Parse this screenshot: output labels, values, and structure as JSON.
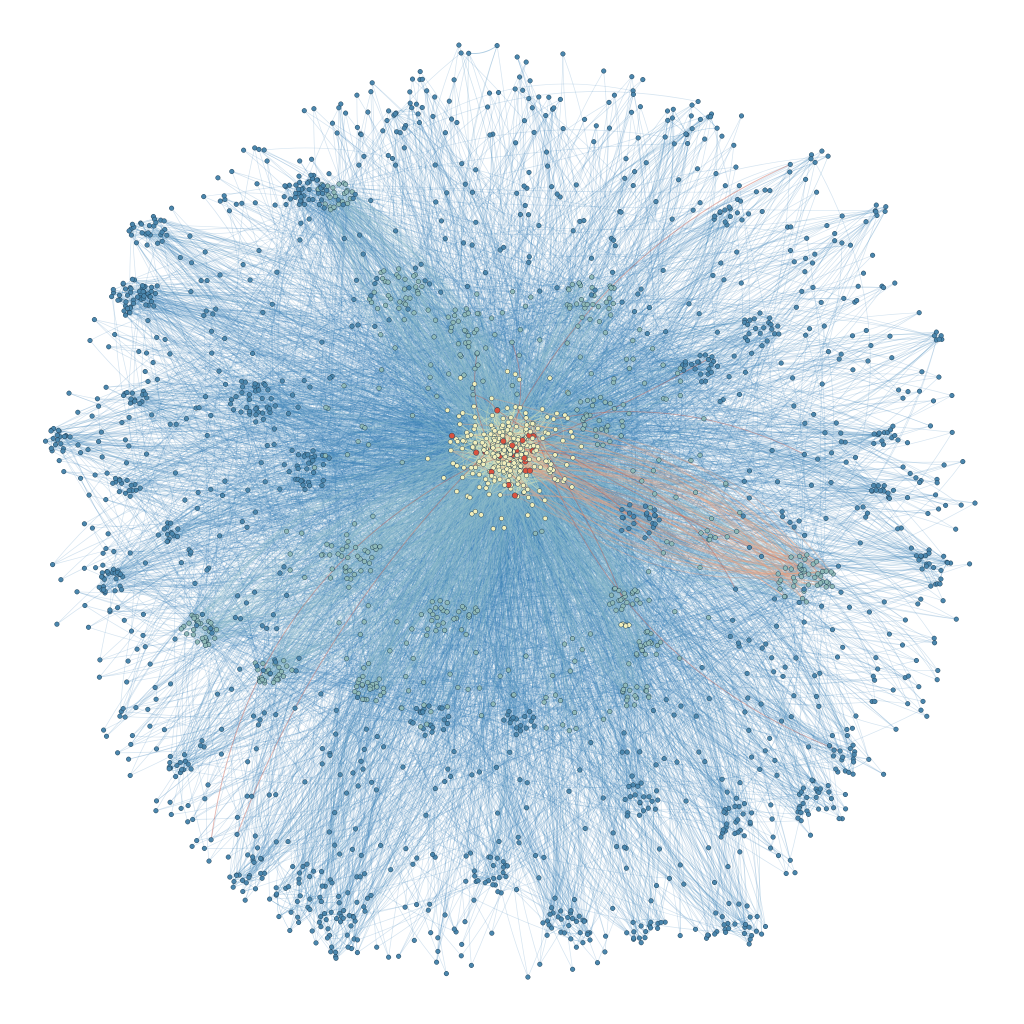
{
  "graph": {
    "type": "force-directed network",
    "palette": {
      "background": "#ffffff",
      "edge_periphery": "#3f86b9",
      "edge_mid": "#8fbccb",
      "edge_core": "#dfe6b8",
      "edge_hot": "#e4a180",
      "edge_red": "#c95f4f",
      "node_fill_periphery": "#4a86ad",
      "node_fill_mid": "#8fb9b7",
      "node_fill_core": "#f3efbb",
      "node_fill_hot": "#d9533f",
      "node_stroke": "#1f3f56"
    },
    "color_scale": [
      "#3f86b9",
      "#8fbccb",
      "#dfe6b8",
      "#e4a180",
      "#c95f4f"
    ],
    "labels_shown": false
  }
}
